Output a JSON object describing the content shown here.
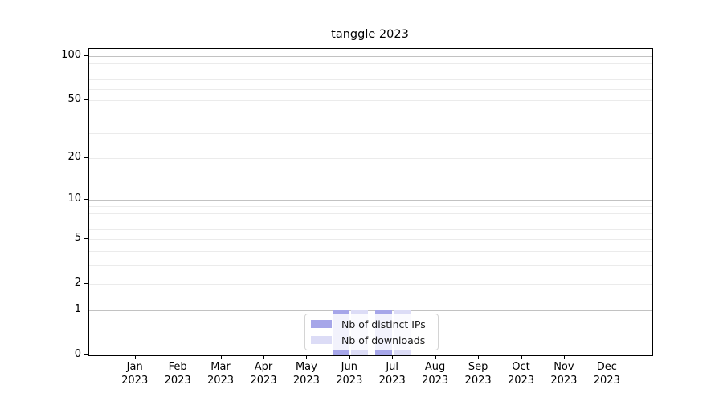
{
  "chart_data": {
    "type": "bar",
    "title": "tanggle 2023",
    "scale": "log1p",
    "ylim": [
      0,
      112
    ],
    "grid": "horizontal",
    "legend_position": "bottom-center",
    "x_tick_labels": [
      {
        "month": "Jan",
        "year": "2023"
      },
      {
        "month": "Feb",
        "year": "2023"
      },
      {
        "month": "Mar",
        "year": "2023"
      },
      {
        "month": "Apr",
        "year": "2023"
      },
      {
        "month": "May",
        "year": "2023"
      },
      {
        "month": "Jun",
        "year": "2023"
      },
      {
        "month": "Jul",
        "year": "2023"
      },
      {
        "month": "Aug",
        "year": "2023"
      },
      {
        "month": "Sep",
        "year": "2023"
      },
      {
        "month": "Oct",
        "year": "2023"
      },
      {
        "month": "Nov",
        "year": "2023"
      },
      {
        "month": "Dec",
        "year": "2023"
      }
    ],
    "series": [
      {
        "name": "Nb of distinct IPs",
        "color": "#a6a6e9",
        "values": [
          0,
          0,
          0,
          0,
          0,
          1,
          1,
          0,
          0,
          0,
          0,
          0
        ]
      },
      {
        "name": "Nb of downloads",
        "color": "#dcdcf6",
        "values": [
          0,
          0,
          0,
          0,
          0,
          1,
          1,
          0,
          0,
          0,
          0,
          0
        ]
      }
    ],
    "y_ticks": [
      {
        "value": 0,
        "label": "0"
      },
      {
        "value": 1,
        "label": "1"
      },
      {
        "value": 2,
        "label": "2"
      },
      {
        "value": 5,
        "label": "5"
      },
      {
        "value": 10,
        "label": "10"
      },
      {
        "value": 20,
        "label": "20"
      },
      {
        "value": 50,
        "label": "50"
      },
      {
        "value": 100,
        "label": "100"
      }
    ],
    "y_major_gridlines": [
      1,
      10,
      100
    ],
    "y_minor_gridlines": [
      2,
      3,
      4,
      5,
      6,
      7,
      8,
      9,
      20,
      30,
      40,
      50,
      60,
      70,
      80,
      90
    ],
    "colors": {
      "major_grid": "#c2c2c2",
      "minor_grid": "#ebebeb",
      "axis": "#000000",
      "background": "#ffffff"
    }
  }
}
